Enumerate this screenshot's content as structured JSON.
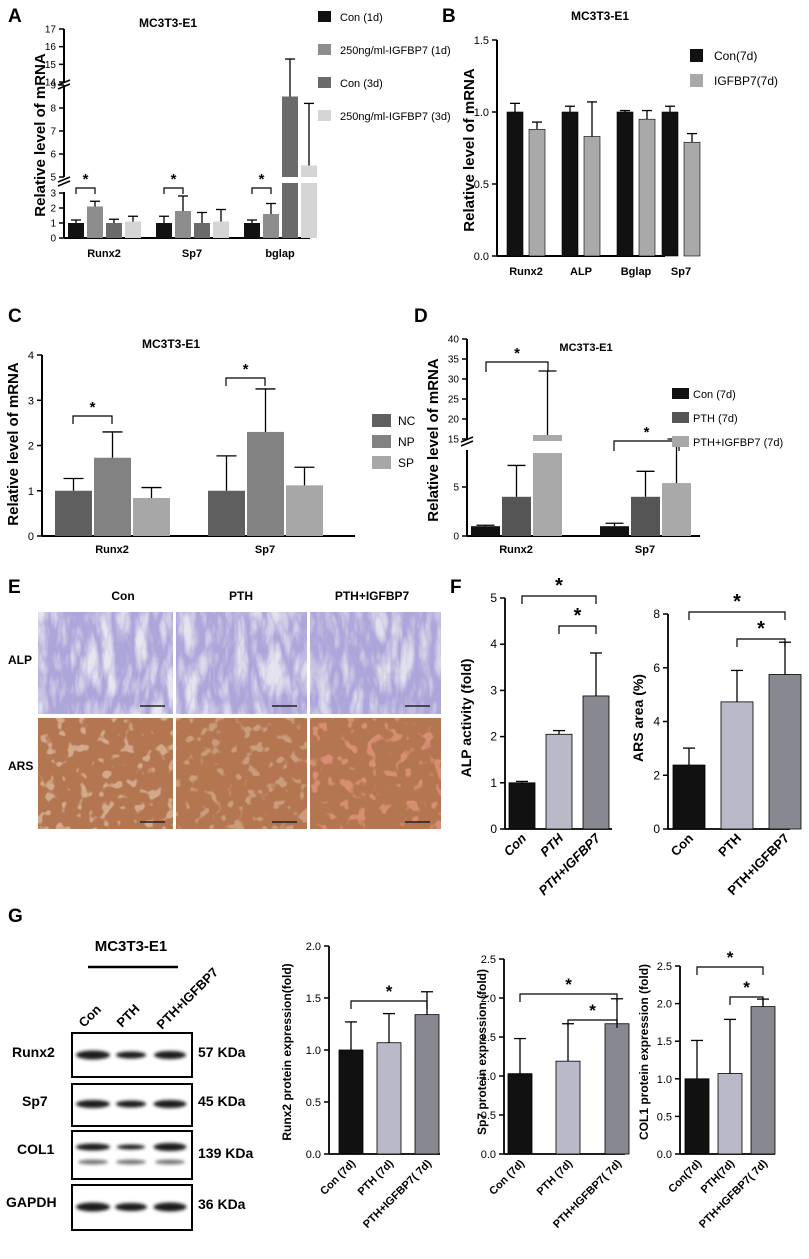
{
  "colors": {
    "black": "#111111",
    "dark": "#4a4a4a",
    "mid": "#6a6a6a",
    "grey": "#8d8d8d",
    "light": "#a9a9a9",
    "pale": "#d5d5d5",
    "dark_c": "#5f5f5f",
    "mid_c": "#828282",
    "light_c": "#a7a7a7",
    "lavender": "#b9b9c7",
    "slate": "#888890"
  },
  "panels": {
    "A": "A",
    "B": "B",
    "C": "C",
    "D": "D",
    "E": "E",
    "F": "F",
    "G": "G"
  },
  "chart_data": [
    {
      "id": "A",
      "type": "bar",
      "title": "MC3T3-E1",
      "ylabel": "Relative level of mRNA",
      "categories": [
        "Runx2",
        "Sp7",
        "bglap"
      ],
      "series": [
        {
          "name": "Con (1d)",
          "values": [
            1.0,
            1.0,
            1.0
          ],
          "errors": [
            0.2,
            0.45,
            0.2
          ]
        },
        {
          "name": "250ng/ml-IGFBP7 (1d)",
          "values": [
            2.1,
            1.8,
            1.6
          ],
          "errors": [
            0.35,
            1.0,
            0.7
          ]
        },
        {
          "name": "Con (3d)",
          "values": [
            1.0,
            1.0,
            8.5
          ],
          "errors": [
            0.25,
            0.7,
            6.8
          ]
        },
        {
          "name": "250ng/ml-IGFBP7 (3d)",
          "values": [
            1.1,
            1.1,
            5.5
          ],
          "errors": [
            0.35,
            0.8,
            2.7
          ]
        }
      ],
      "ticks_low": [
        "0",
        "1",
        "2",
        "3"
      ],
      "ticks_mid": [
        "5",
        "6",
        "7",
        "8",
        "9"
      ],
      "ticks_high": [
        "14",
        "15",
        "16",
        "17"
      ],
      "significance": [
        "*",
        "*",
        "*"
      ]
    },
    {
      "id": "B",
      "type": "bar",
      "title": "MC3T3-E1",
      "ylabel": "Relative level of mRNA",
      "categories": [
        "Runx2",
        "ALP",
        "Bglap",
        "Sp7"
      ],
      "series": [
        {
          "name": "Con(7d)",
          "values": [
            1.0,
            1.0,
            1.0,
            1.0
          ],
          "errors": [
            0.06,
            0.04,
            0.01,
            0.04
          ]
        },
        {
          "name": "IGFBP7(7d)",
          "values": [
            0.88,
            0.83,
            0.95,
            0.79
          ],
          "errors": [
            0.05,
            0.24,
            0.06,
            0.06
          ]
        }
      ],
      "ylim": [
        0,
        1.5
      ],
      "ticks": [
        "0.0",
        "0.5",
        "1.0",
        "1.5"
      ]
    },
    {
      "id": "C",
      "type": "bar",
      "title": "MC3T3-E1",
      "ylabel": "Relative level of mRNA",
      "categories": [
        "Runx2",
        "Sp7"
      ],
      "series": [
        {
          "name": "NC",
          "values": [
            1.0,
            1.0
          ],
          "errors": [
            0.27,
            0.77
          ]
        },
        {
          "name": "NP",
          "values": [
            1.73,
            2.3
          ],
          "errors": [
            0.57,
            0.95
          ]
        },
        {
          "name": "SP",
          "values": [
            0.84,
            1.12
          ],
          "errors": [
            0.23,
            0.4
          ]
        }
      ],
      "ylim": [
        0,
        4
      ],
      "ticks": [
        "0",
        "1",
        "2",
        "3",
        "4"
      ],
      "significance": [
        "*",
        "*"
      ]
    },
    {
      "id": "D",
      "type": "bar",
      "title": "MC3T3-E1",
      "ylabel": "Relative level of mRNA",
      "categories": [
        "Runx2",
        "Sp7"
      ],
      "series": [
        {
          "name": "Con (7d)",
          "values": [
            1.0,
            1.0
          ],
          "errors": [
            0.1,
            0.3
          ]
        },
        {
          "name": "PTH (7d)",
          "values": [
            4.0,
            4.0
          ],
          "errors": [
            3.2,
            2.6
          ]
        },
        {
          "name": "PTH+IGFBP7 (7d)",
          "values": [
            16.0,
            5.4
          ],
          "errors": [
            16.0,
            3.2
          ]
        }
      ],
      "ticks_low": [
        "0",
        "5"
      ],
      "ticks_high": [
        "15",
        "20",
        "25",
        "30",
        "35",
        "40"
      ],
      "significance": [
        "*",
        "*"
      ]
    },
    {
      "id": "F1",
      "type": "bar",
      "ylabel": "ALP activity (fold)",
      "categories": [
        "Con",
        "PTH",
        "PTH+IGFBP7"
      ],
      "values": [
        1.0,
        2.05,
        2.88
      ],
      "errors": [
        0.03,
        0.08,
        0.93
      ],
      "ylim": [
        0,
        5
      ],
      "ticks": [
        "0",
        "1",
        "2",
        "3",
        "4",
        "5"
      ],
      "significance": [
        "*",
        "*"
      ]
    },
    {
      "id": "F2",
      "type": "bar",
      "ylabel": "ARS area (%)",
      "categories": [
        "Con",
        "PTH",
        "PTH+IGFBP7"
      ],
      "values": [
        2.38,
        4.73,
        5.75
      ],
      "errors": [
        0.63,
        1.17,
        1.2
      ],
      "ylim": [
        0,
        8
      ],
      "ticks": [
        "0",
        "2",
        "4",
        "6",
        "8"
      ],
      "significance": [
        "*",
        "*"
      ]
    },
    {
      "id": "G1",
      "type": "bar",
      "ylabel": "Runx2 protein expression(fold)",
      "categories": [
        "Con (7d)",
        "PTH (7d)",
        "PTH+IGFBP7( 7d)"
      ],
      "values": [
        1.0,
        1.07,
        1.34
      ],
      "errors": [
        0.27,
        0.28,
        0.22
      ],
      "ylim": [
        0,
        2.0
      ],
      "ticks": [
        "0.0",
        "0.5",
        "1.0",
        "1.5",
        "2.0"
      ],
      "significance": [
        "*"
      ]
    },
    {
      "id": "G2",
      "type": "bar",
      "ylabel": "Sp7 protein expression (fold)",
      "categories": [
        "Con (7d)",
        "PTH (7d)",
        "PTH+IGFBP7( 7d)"
      ],
      "values": [
        1.03,
        1.19,
        1.67
      ],
      "errors": [
        0.45,
        0.48,
        0.32
      ],
      "ylim": [
        0,
        2.5
      ],
      "ticks": [
        "0.0",
        "0.5",
        "1.0",
        "1.5",
        "2.0",
        "2.5"
      ],
      "significance": [
        "*",
        "*"
      ]
    },
    {
      "id": "G3",
      "type": "bar",
      "ylabel": "COL1 protein expression (fold)",
      "categories": [
        "Con(7d)",
        "PTH(7d)",
        "PTH+IGFBP7( 7d)"
      ],
      "values": [
        1.0,
        1.07,
        1.96
      ],
      "errors": [
        0.51,
        0.72,
        0.1
      ],
      "ylim": [
        0,
        2.5
      ],
      "ticks": [
        "0.0",
        "0.5",
        "1.0",
        "1.5",
        "2.0",
        "2.5"
      ],
      "significance": [
        "*",
        "*"
      ]
    }
  ],
  "stain": {
    "columns": [
      "Con",
      "PTH",
      "PTH+IGFBP7"
    ],
    "rows": [
      "ALP",
      "ARS"
    ]
  },
  "blot": {
    "cell_line": "MC3T3-E1",
    "lanes": [
      "Con",
      "PTH",
      "PTH+IGFBP7"
    ],
    "proteins": [
      {
        "name": "Runx2",
        "size": "57 KDa"
      },
      {
        "name": "Sp7",
        "size": "45 KDa"
      },
      {
        "name": "COL1",
        "size": "139 KDa"
      },
      {
        "name": "GAPDH",
        "size": "36 KDa"
      }
    ]
  }
}
